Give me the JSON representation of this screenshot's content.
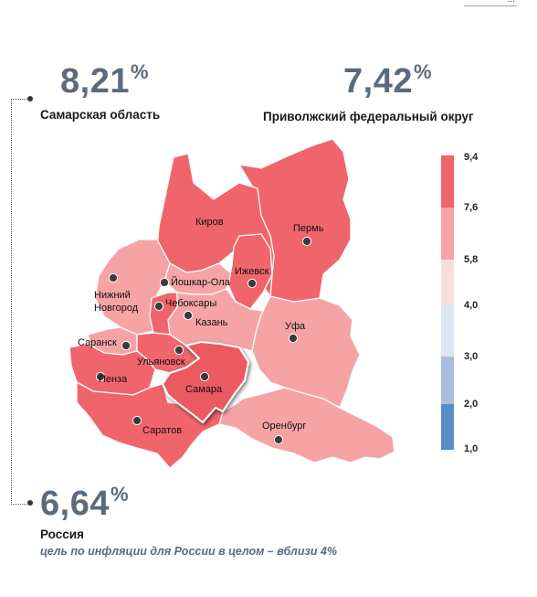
{
  "corner_mark": "...",
  "stats": {
    "samara": {
      "value": "8,21",
      "unit": "%",
      "label": "Самарская область"
    },
    "pfo": {
      "value": "7,42",
      "unit": "%",
      "label": "Приволжский федеральный округ"
    },
    "russia": {
      "value": "6,64",
      "unit": "%",
      "label": "Россия",
      "note": "цель по инфляции для России в целом – вблизи 4%"
    }
  },
  "legend": {
    "labels": [
      "9,4",
      "7,6",
      "5,8",
      "4,0",
      "3,0",
      "2,0",
      "1,0"
    ],
    "colors": [
      "#f0656b",
      "#f6a3a6",
      "#fbdde0",
      "#dfe6f3",
      "#a9bedf",
      "#5a8bc9"
    ]
  },
  "map": {
    "colors": {
      "high": "#f0656b",
      "mid": "#f6a3a6",
      "highlight": "#ea5a60",
      "border": "#ffffff"
    },
    "cities": [
      {
        "name": "Киров",
        "key": "kirov"
      },
      {
        "name": "Пермь",
        "key": "perm"
      },
      {
        "name": "Ижевск",
        "key": "izhevsk"
      },
      {
        "name": "Йошкар-Ола",
        "key": "yoshkar"
      },
      {
        "name": "Нижний",
        "key": "nn1"
      },
      {
        "name": "Новгород",
        "key": "nn2"
      },
      {
        "name": "Чебоксары",
        "key": "cheb"
      },
      {
        "name": "Казань",
        "key": "kazan"
      },
      {
        "name": "Уфа",
        "key": "ufa"
      },
      {
        "name": "Саранск",
        "key": "saransk"
      },
      {
        "name": "Ульяновск",
        "key": "ulyanovsk"
      },
      {
        "name": "Пенза",
        "key": "penza"
      },
      {
        "name": "Самара",
        "key": "samara"
      },
      {
        "name": "Саратов",
        "key": "saratov"
      },
      {
        "name": "Оренбург",
        "key": "orenburg"
      }
    ]
  }
}
